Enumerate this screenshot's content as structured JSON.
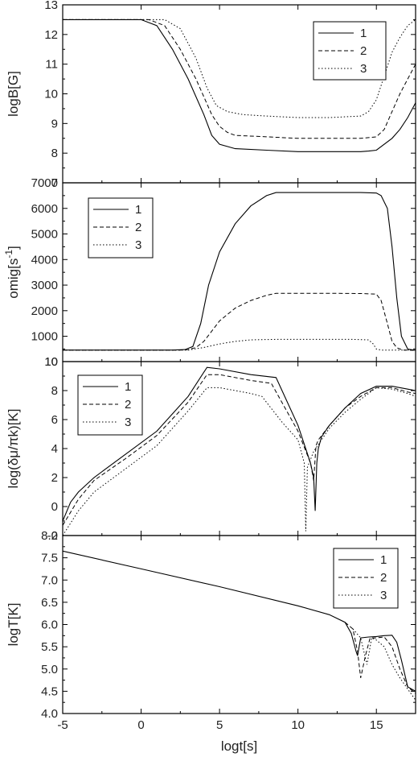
{
  "xlabel": "logt[s]",
  "chart_data": [
    {
      "type": "line",
      "ylabel": "logB[G]",
      "xlim": [
        -5,
        17.5
      ],
      "ylim": [
        7,
        13
      ],
      "yticks": [
        "13",
        "12",
        "11",
        "10",
        "9",
        "8",
        "7"
      ],
      "ytick_values": [
        13,
        12,
        11,
        10,
        9,
        8,
        7
      ],
      "legend": "top-right",
      "series": [
        {
          "name": "1",
          "style": "solid",
          "x": [
            -5,
            0,
            1,
            2,
            3,
            4,
            4.5,
            5,
            6,
            8,
            10,
            12,
            14,
            14.5,
            15,
            16,
            16.5,
            17,
            17.5
          ],
          "y": [
            12.5,
            12.5,
            12.3,
            11.5,
            10.5,
            9.3,
            8.6,
            8.3,
            8.15,
            8.1,
            8.05,
            8.05,
            8.05,
            8.07,
            8.1,
            8.5,
            8.8,
            9.2,
            9.7
          ]
        },
        {
          "name": "2",
          "style": "dashed",
          "x": [
            -5,
            0.5,
            1.5,
            2.5,
            3.5,
            4.5,
            5,
            5.5,
            6,
            8,
            10,
            12,
            14,
            15,
            15.5,
            16,
            16.5,
            17,
            17.5
          ],
          "y": [
            12.5,
            12.5,
            12.3,
            11.5,
            10.5,
            9.3,
            8.9,
            8.7,
            8.6,
            8.55,
            8.5,
            8.5,
            8.5,
            8.55,
            8.8,
            9.4,
            10,
            10.5,
            11
          ]
        },
        {
          "name": "3",
          "style": "dotted",
          "x": [
            -5,
            1.5,
            2.5,
            3.5,
            4.2,
            4.8,
            5.5,
            6.5,
            8,
            10,
            12,
            14,
            14.5,
            15,
            15.5,
            16,
            16.5,
            17,
            17.5
          ],
          "y": [
            12.5,
            12.5,
            12.2,
            11.2,
            10.2,
            9.6,
            9.4,
            9.3,
            9.25,
            9.2,
            9.2,
            9.25,
            9.4,
            9.8,
            10.6,
            11.4,
            11.9,
            12.3,
            12.5
          ]
        }
      ]
    },
    {
      "type": "line",
      "ylabel": "omig[s-1]",
      "ylabel_main": "omig[s",
      "ylabel_sup": "-1",
      "ylabel_end": "]",
      "xlim": [
        -5,
        17.5
      ],
      "ylim": [
        10,
        7000
      ],
      "yticks": [
        "7000",
        "6000",
        "5000",
        "4000",
        "3000",
        "2000",
        "1000",
        "10"
      ],
      "ytick_values": [
        7000,
        6000,
        5000,
        4000,
        3000,
        2000,
        1000,
        10
      ],
      "legend": "top-left",
      "series": [
        {
          "name": "1",
          "style": "solid",
          "x": [
            -5,
            2,
            2.8,
            3.3,
            3.8,
            4.3,
            5,
            6,
            7,
            8,
            8.6,
            10,
            12,
            14,
            15,
            15.3,
            15.7,
            16,
            16.3,
            16.6,
            17,
            17.5
          ],
          "y": [
            460,
            460,
            480,
            600,
            1500,
            3000,
            4300,
            5400,
            6100,
            6500,
            6620,
            6620,
            6620,
            6620,
            6600,
            6500,
            6000,
            4500,
            2500,
            1000,
            500,
            450
          ]
        },
        {
          "name": "2",
          "style": "dashed",
          "x": [
            -5,
            2.5,
            3,
            3.5,
            4,
            4.5,
            5,
            6,
            7,
            8,
            8.6,
            10,
            12,
            14,
            15,
            15.3,
            15.7,
            16,
            16.3,
            16.7,
            17.5
          ],
          "y": [
            460,
            460,
            480,
            560,
            800,
            1200,
            1600,
            2100,
            2400,
            2600,
            2680,
            2680,
            2680,
            2670,
            2650,
            2400,
            1500,
            800,
            550,
            460,
            450
          ]
        },
        {
          "name": "3",
          "style": "dotted",
          "x": [
            -5,
            3,
            4,
            5,
            6,
            7,
            8.6,
            10,
            12,
            13.5,
            14.5,
            14.8,
            15,
            15.3,
            17.5
          ],
          "y": [
            460,
            460,
            560,
            700,
            800,
            860,
            880,
            880,
            880,
            880,
            860,
            700,
            500,
            460,
            460
          ]
        }
      ]
    },
    {
      "type": "line",
      "ylabel": "log(δμ/πk)[K]",
      "xlim": [
        -5,
        17.5
      ],
      "ylim": [
        -2,
        10
      ],
      "yticks": [
        "10",
        "8",
        "6",
        "4",
        "2",
        "0",
        "-2"
      ],
      "ytick_values": [
        10,
        8,
        6,
        4,
        2,
        0,
        -2
      ],
      "legend": "top-left",
      "series": [
        {
          "name": "1",
          "style": "solid",
          "x": [
            -5,
            -4.5,
            -4,
            -3,
            -1,
            1,
            3,
            4.2,
            5,
            7,
            8.6,
            10,
            10.8,
            11,
            11.1,
            11.2,
            11.3,
            11.5,
            12,
            13,
            14,
            15,
            16,
            17,
            17.5
          ],
          "y": [
            -1,
            0.3,
            1,
            2,
            3.6,
            5.2,
            7.6,
            9.6,
            9.5,
            9.1,
            8.9,
            5.6,
            3,
            2,
            -0.3,
            3,
            4,
            4.8,
            5.6,
            6.8,
            7.8,
            8.3,
            8.3,
            8.1,
            8.0
          ]
        },
        {
          "name": "2",
          "style": "dashed",
          "x": [
            -5,
            -4,
            -3,
            -1,
            1,
            3,
            4.2,
            5,
            7,
            8.3,
            10,
            10.8,
            11,
            11.15,
            11.3,
            12,
            13,
            14,
            15,
            16,
            17,
            17.5
          ],
          "y": [
            -1.3,
            0.5,
            1.8,
            3.3,
            4.9,
            7.2,
            9.1,
            9.1,
            8.7,
            8.5,
            5.2,
            3,
            1.8,
            4.2,
            4.6,
            5.6,
            6.8,
            7.6,
            8.2,
            8.2,
            7.9,
            7.8
          ]
        },
        {
          "name": "3",
          "style": "dotted",
          "x": [
            -5,
            -4,
            -3,
            -1,
            1,
            3,
            4.2,
            5,
            7,
            7.7,
            9,
            10,
            10.4,
            10.5,
            10.6,
            11,
            12,
            13,
            14,
            15,
            16,
            17,
            17.5
          ],
          "y": [
            -2,
            -0.3,
            1,
            2.6,
            4.2,
            6.6,
            8.2,
            8.2,
            7.8,
            7.6,
            5.8,
            4.6,
            3,
            -1.7,
            2.7,
            3.8,
            5.4,
            6.5,
            7.4,
            8.2,
            8.1,
            7.8,
            7.6
          ]
        }
      ]
    },
    {
      "type": "line",
      "ylabel": "logT[K]",
      "xlim": [
        -5,
        17.5
      ],
      "ylim": [
        4,
        8
      ],
      "yticks": [
        "8.0",
        "7.5",
        "7.0",
        "6.5",
        "6.0",
        "5.5",
        "5.0",
        "4.5",
        "4.0"
      ],
      "ytick_values": [
        8,
        7.5,
        7,
        6.5,
        6,
        5.5,
        5,
        4.5,
        4
      ],
      "legend": "top-right",
      "series": [
        {
          "name": "1",
          "style": "solid",
          "x": [
            -5,
            0,
            5,
            10,
            12,
            13,
            13.4,
            13.7,
            13.8,
            14,
            14.5,
            15,
            15.5,
            16,
            16.3,
            16.6,
            17,
            17.5
          ],
          "y": [
            7.65,
            7.25,
            6.85,
            6.42,
            6.22,
            6.05,
            5.8,
            5.4,
            5.3,
            5.7,
            5.72,
            5.73,
            5.75,
            5.76,
            5.6,
            5.2,
            4.6,
            4.5
          ]
        },
        {
          "name": "2",
          "style": "dashed",
          "x": [
            13,
            13.5,
            13.8,
            14,
            14.3,
            14.6,
            15,
            15.5,
            16,
            16.5,
            17,
            17.5
          ],
          "y": [
            6.05,
            5.9,
            5.4,
            4.8,
            5.3,
            5.7,
            5.7,
            5.72,
            5.5,
            5.0,
            4.6,
            4.45
          ]
        },
        {
          "name": "3",
          "style": "dotted",
          "x": [
            13.5,
            14,
            14.4,
            14.7,
            15,
            15.5,
            16,
            16.5,
            17,
            17.5
          ],
          "y": [
            5.9,
            5.7,
            5.1,
            5.7,
            5.65,
            5.5,
            5.1,
            4.8,
            4.55,
            4.3
          ]
        }
      ]
    }
  ],
  "xaxis": {
    "ticks": [
      "-5",
      "0",
      "5",
      "10",
      "15"
    ],
    "tick_values": [
      -5,
      0,
      5,
      10,
      15
    ]
  }
}
